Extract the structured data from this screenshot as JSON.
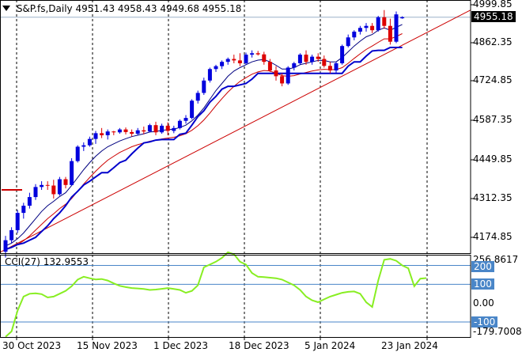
{
  "header": {
    "symbol": "S&P.fs,Daily",
    "ohlc": "4951.43 4958.43 4949.68 4955.18"
  },
  "price_axis": {
    "labels": [
      "4999.85",
      "4862.35",
      "4724.85",
      "4587.35",
      "4449.85",
      "4312.35",
      "4174.85"
    ],
    "current_price": "4955.18"
  },
  "cci_panel": {
    "label": "CCI(27) 132.9553",
    "axis": {
      "max": "256.8617",
      "level_200": "200",
      "level_100": "100",
      "zero": "0.00",
      "level_m100": "-100",
      "min": "-179.7008"
    }
  },
  "time_axis": [
    "30 Oct 2023",
    "15 Nov 2023",
    "1 Dec 2023",
    "18 Dec 2023",
    "5 Jan 2024",
    "23 Jan 2024"
  ],
  "colors": {
    "bull_candle": "#0000dd",
    "bear_candle": "#dd0000",
    "ma_fast": "#000080",
    "ma_slow": "#cc0000",
    "support": "#0000cc",
    "trendline": "#cc0000",
    "cci_line": "#88ee22",
    "level_box": "#4a86c8"
  },
  "chart_data": [
    {
      "type": "candlestick",
      "title": "S&P.fs,Daily",
      "ylim": [
        4135,
        5015
      ],
      "x_ticks": [
        "30 Oct 2023",
        "15 Nov 2023",
        "1 Dec 2023",
        "18 Dec 2023",
        "5 Jan 2024",
        "23 Jan 2024"
      ],
      "ohlc": [
        [
          4140,
          4195,
          4120,
          4180
        ],
        [
          4180,
          4225,
          4170,
          4215
        ],
        [
          4215,
          4285,
          4205,
          4275
        ],
        [
          4275,
          4310,
          4255,
          4300
        ],
        [
          4300,
          4345,
          4290,
          4330
        ],
        [
          4330,
          4375,
          4320,
          4365
        ],
        [
          4365,
          4385,
          4355,
          4372
        ],
        [
          4372,
          4385,
          4355,
          4370
        ],
        [
          4370,
          4390,
          4325,
          4340
        ],
        [
          4340,
          4400,
          4335,
          4392
        ],
        [
          4392,
          4400,
          4360,
          4372
        ],
        [
          4372,
          4465,
          4370,
          4455
        ],
        [
          4455,
          4510,
          4450,
          4505
        ],
        [
          4505,
          4520,
          4490,
          4510
        ],
        [
          4510,
          4540,
          4505,
          4532
        ],
        [
          4532,
          4560,
          4515,
          4552
        ],
        [
          4552,
          4570,
          4535,
          4545
        ],
        [
          4545,
          4565,
          4530,
          4558
        ],
        [
          4558,
          4560,
          4545,
          4555
        ],
        [
          4555,
          4570,
          4550,
          4565
        ],
        [
          4565,
          4572,
          4548,
          4556
        ],
        [
          4556,
          4565,
          4540,
          4550
        ],
        [
          4550,
          4570,
          4545,
          4562
        ],
        [
          4562,
          4575,
          4548,
          4558
        ],
        [
          4558,
          4585,
          4555,
          4580
        ],
        [
          4580,
          4592,
          4545,
          4555
        ],
        [
          4555,
          4585,
          4550,
          4578
        ],
        [
          4578,
          4590,
          4545,
          4560
        ],
        [
          4560,
          4578,
          4552,
          4570
        ],
        [
          4570,
          4600,
          4565,
          4595
        ],
        [
          4595,
          4615,
          4585,
          4605
        ],
        [
          4605,
          4670,
          4600,
          4665
        ],
        [
          4665,
          4700,
          4655,
          4692
        ],
        [
          4692,
          4745,
          4685,
          4735
        ],
        [
          4735,
          4780,
          4728,
          4775
        ],
        [
          4775,
          4790,
          4765,
          4785
        ],
        [
          4785,
          4805,
          4775,
          4800
        ],
        [
          4800,
          4815,
          4790,
          4810
        ],
        [
          4810,
          4825,
          4795,
          4805
        ],
        [
          4805,
          4830,
          4785,
          4795
        ],
        [
          4795,
          4832,
          4790,
          4825
        ],
        [
          4825,
          4840,
          4815,
          4830
        ],
        [
          4830,
          4838,
          4822,
          4826
        ],
        [
          4826,
          4835,
          4790,
          4800
        ],
        [
          4800,
          4810,
          4765,
          4770
        ],
        [
          4770,
          4785,
          4735,
          4750
        ],
        [
          4750,
          4760,
          4715,
          4725
        ],
        [
          4725,
          4785,
          4720,
          4780
        ],
        [
          4780,
          4800,
          4770,
          4795
        ],
        [
          4795,
          4830,
          4790,
          4825
        ],
        [
          4825,
          4840,
          4790,
          4800
        ],
        [
          4800,
          4825,
          4790,
          4818
        ],
        [
          4818,
          4830,
          4800,
          4810
        ],
        [
          4810,
          4822,
          4780,
          4786
        ],
        [
          4786,
          4800,
          4760,
          4770
        ],
        [
          4770,
          4800,
          4762,
          4795
        ],
        [
          4795,
          4860,
          4790,
          4855
        ],
        [
          4855,
          4895,
          4850,
          4885
        ],
        [
          4885,
          4910,
          4875,
          4905
        ],
        [
          4905,
          4925,
          4895,
          4918
        ],
        [
          4918,
          4935,
          4905,
          4925
        ],
        [
          4925,
          4935,
          4900,
          4910
        ],
        [
          4910,
          4960,
          4905,
          4955
        ],
        [
          4955,
          4980,
          4915,
          4925
        ],
        [
          4925,
          4950,
          4860,
          4870
        ],
        [
          4870,
          4975,
          4865,
          4965
        ],
        [
          4951.43,
          4958.43,
          4949.68,
          4955.18
        ]
      ],
      "series": [
        {
          "values": [
            4160,
            4170,
            4185,
            4205,
            4230,
            4255,
            4280,
            4300,
            4315,
            4332,
            4345,
            4370,
            4398,
            4425,
            4450,
            4472,
            4490,
            4505,
            4515,
            4525,
            4533,
            4540,
            4545,
            4550,
            4556,
            4558,
            4562,
            4564,
            4566,
            4572,
            4580,
            4595,
            4615,
            4640,
            4670,
            4700,
            4725,
            4750,
            4768,
            4780,
            4790,
            4800,
            4806,
            4808,
            4800,
            4788,
            4775,
            4775,
            4780,
            4790,
            4795,
            4800,
            4805,
            4805,
            4800,
            4800,
            4815,
            4835,
            4855,
            4872,
            4887,
            4895,
            4910,
            4918,
            4910,
            4920,
            4930
          ]
        },
        {
          "values": [
            4150,
            4155,
            4165,
            4178,
            4195,
            4215,
            4235,
            4255,
            4272,
            4290,
            4305,
            4325,
            4350,
            4375,
            4398,
            4420,
            4440,
            4458,
            4472,
            4485,
            4495,
            4505,
            4512,
            4518,
            4524,
            4528,
            4532,
            4535,
            4538,
            4543,
            4550,
            4562,
            4578,
            4598,
            4622,
            4648,
            4672,
            4695,
            4715,
            4732,
            4745,
            4757,
            4765,
            4770,
            4768,
            4760,
            4752,
            4750,
            4752,
            4758,
            4763,
            4768,
            4772,
            4774,
            4773,
            4773,
            4780,
            4795,
            4812,
            4828,
            4843,
            4855,
            4868,
            4880,
            4880,
            4888,
            4898
          ]
        },
        {
          "values": [
            4148,
            4155,
            4165,
            4170,
            4180,
            4190,
            4210,
            4230,
            4255,
            4275,
            4300,
            4330,
            4350,
            4372,
            4385,
            4400,
            4415,
            4415,
            4432,
            4450,
            4458,
            4480,
            4500,
            4518,
            4522,
            4528,
            4530,
            4530,
            4530,
            4548,
            4552,
            4580,
            4610,
            4630,
            4660,
            4680,
            4705,
            4715,
            4715,
            4720,
            4725,
            4740,
            4760,
            4760,
            4760,
            4760,
            4760,
            4760,
            4760,
            4760,
            4760,
            4760,
            4760,
            4760,
            4760,
            4760,
            4760,
            4785,
            4800,
            4800,
            4820,
            4838,
            4840,
            4840,
            4850,
            4850,
            4850
          ]
        }
      ]
    },
    {
      "type": "line",
      "title": "CCI(27) 132.9553",
      "ylim": [
        -179.7008,
        256.8617
      ],
      "series": [
        {
          "values": [
            -179,
            -150,
            -40,
            35,
            50,
            52,
            48,
            30,
            35,
            50,
            65,
            90,
            125,
            140,
            132,
            126,
            128,
            120,
            105,
            92,
            85,
            80,
            78,
            75,
            70,
            72,
            76,
            80,
            75,
            70,
            55,
            65,
            95,
            190,
            205,
            220,
            240,
            270,
            260,
            220,
            205,
            160,
            140,
            138,
            135,
            132,
            125,
            110,
            95,
            70,
            35,
            15,
            5,
            20,
            35,
            45,
            55,
            60,
            62,
            50,
            5,
            -20,
            120,
            230,
            235,
            225,
            200,
            185,
            90,
            130,
            133
          ]
        }
      ]
    }
  ]
}
